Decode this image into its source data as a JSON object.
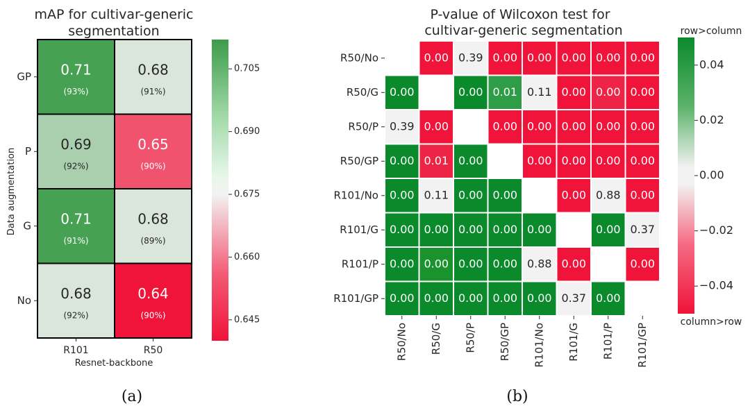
{
  "chart_data": [
    {
      "type": "heatmap",
      "title": "mAP for cultivar-generic segmentation",
      "title_lines": [
        "mAP for cultivar-generic",
        "segmentation"
      ],
      "xlabel": "Resnet-backbone",
      "ylabel": "Data augmentation",
      "x_categories": [
        "R101",
        "R50"
      ],
      "y_categories": [
        "GP",
        "P",
        "G",
        "No"
      ],
      "values": [
        [
          0.71,
          0.68
        ],
        [
          0.69,
          0.65
        ],
        [
          0.71,
          0.68
        ],
        [
          0.68,
          0.64
        ]
      ],
      "value_labels": [
        [
          "0.71",
          "0.68"
        ],
        [
          "0.69",
          "0.65"
        ],
        [
          "0.71",
          "0.68"
        ],
        [
          "0.68",
          "0.64"
        ]
      ],
      "sub_labels": [
        [
          "(93%)",
          "(91%)"
        ],
        [
          "(92%)",
          "(90%)"
        ],
        [
          "(91%)",
          "(89%)"
        ],
        [
          "(92%)",
          "(90%)"
        ]
      ],
      "colorbar": {
        "range": [
          0.64,
          0.712
        ],
        "center": 0.675,
        "ticks": [
          0.705,
          0.69,
          0.675,
          0.66,
          0.645
        ],
        "tick_labels": [
          "0.705",
          "0.690",
          "0.675",
          "0.660",
          "0.645"
        ]
      },
      "colormap": {
        "low": "#f0133a",
        "mid": "#f2f2f2",
        "high": "#3d9c4a"
      },
      "caption": "(a)"
    },
    {
      "type": "heatmap",
      "title": "P-value of Wilcoxon test for cultivar-generic segmentation",
      "title_lines": [
        "P-value of Wilcoxon test for",
        "cultivar-generic segmentation"
      ],
      "categories": [
        "R50/No",
        "R50/G",
        "R50/P",
        "R50/GP",
        "R101/No",
        "R101/G",
        "R101/P",
        "R101/GP"
      ],
      "cells": [
        [
          "",
          "0.00",
          "0.39",
          "0.00",
          "0.00",
          "0.00",
          "0.00",
          "0.00"
        ],
        [
          "0.00",
          "",
          "0.00",
          "0.01",
          "0.11",
          "0.00",
          "0.00",
          "0.00"
        ],
        [
          "0.39",
          "0.00",
          "",
          "0.00",
          "0.00",
          "0.00",
          "0.00",
          "0.00"
        ],
        [
          "0.00",
          "0.01",
          "0.00",
          "",
          "0.00",
          "0.00",
          "0.00",
          "0.00"
        ],
        [
          "0.00",
          "0.11",
          "0.00",
          "0.00",
          "",
          "0.00",
          "0.88",
          "0.00"
        ],
        [
          "0.00",
          "0.00",
          "0.00",
          "0.00",
          "0.00",
          "",
          "0.00",
          "0.37"
        ],
        [
          "0.00",
          "0.00",
          "0.00",
          "0.00",
          "0.88",
          "0.00",
          "",
          "0.00"
        ],
        [
          "0.00",
          "0.00",
          "0.00",
          "0.00",
          "0.00",
          "0.37",
          "0.00",
          ""
        ]
      ],
      "colors": [
        [
          "",
          "#f0133a",
          "#f2f2f2",
          "#f0133a",
          "#f0133a",
          "#f0133a",
          "#f0133a",
          "#f0133a"
        ],
        [
          "#0b8a2c",
          "",
          "#0b8a2c",
          "#2f9c47",
          "#f2f2f2",
          "#f0133a",
          "#ee2447",
          "#f0133a"
        ],
        [
          "#f2f2f2",
          "#f0133a",
          "",
          "#f0133a",
          "#f0133a",
          "#f0133a",
          "#f0133a",
          "#f0133a"
        ],
        [
          "#0b8a2c",
          "#ee2447",
          "#0b8a2c",
          "",
          "#f0133a",
          "#f0133a",
          "#f0133a",
          "#f0133a"
        ],
        [
          "#0b8a2c",
          "#f2f2f2",
          "#0b8a2c",
          "#0b8a2c",
          "",
          "#f0133a",
          "#f2f2f2",
          "#f0133a"
        ],
        [
          "#0b8a2c",
          "#0b8a2c",
          "#0b8a2c",
          "#0b8a2c",
          "#0b8a2c",
          "",
          "#0b8a2c",
          "#f2f2f2"
        ],
        [
          "#0b8a2c",
          "#1a932f",
          "#0b8a2c",
          "#0b8a2c",
          "#f2f2f2",
          "#f0133a",
          "",
          "#f0133a"
        ],
        [
          "#0b8a2c",
          "#0b8a2c",
          "#0b8a2c",
          "#0b8a2c",
          "#0b8a2c",
          "#f2f2f2",
          "#0b8a2c",
          ""
        ]
      ],
      "colorbar": {
        "range": [
          -0.05,
          0.05
        ],
        "ticks": [
          0.04,
          0.02,
          0.0,
          -0.02,
          -0.04
        ],
        "tick_labels": [
          "0.04",
          "0.02",
          "0.00",
          "−0.02",
          "−0.04"
        ],
        "top_label": "row>column",
        "bottom_label": "column>row"
      },
      "colormap": {
        "low": "#f0133a",
        "mid": "#f2f2f2",
        "high": "#0b8a2c"
      },
      "caption": "(b)"
    }
  ]
}
